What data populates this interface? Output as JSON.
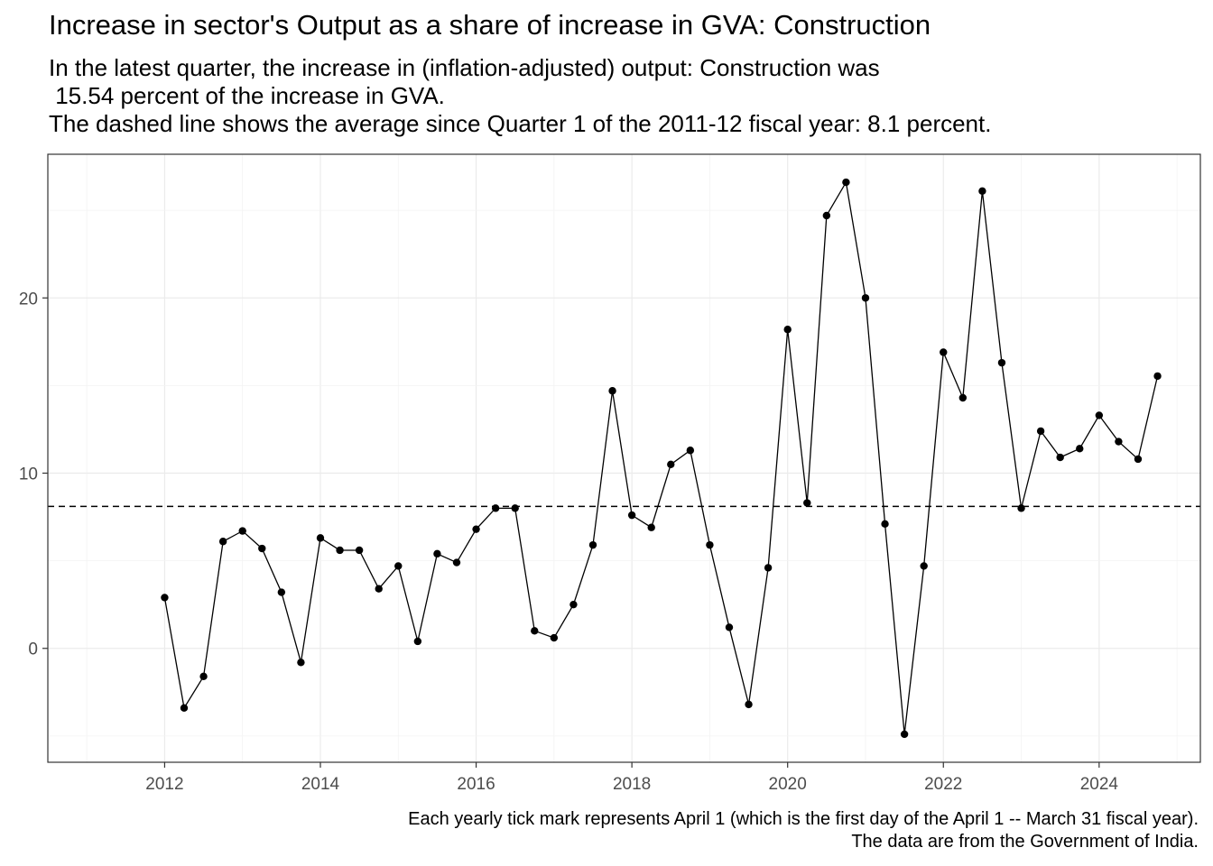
{
  "chart_data": {
    "type": "line",
    "title": "Increase in sector's Output as a share of increase in GVA: Construction",
    "subtitle": [
      "In the latest quarter, the increase in (inflation-adjusted) output: Construction was",
      " 15.54 percent of the increase in GVA.",
      "The dashed line shows the average since Quarter 1 of the 2011-12 fiscal year: 8.1 percent."
    ],
    "caption": [
      "Each yearly tick mark represents April 1 (which is the first day of the April 1 -- March 31 fiscal year).",
      "The data are from the Government of India."
    ],
    "xlabel": "",
    "ylabel": "",
    "xlim": [
      2010.5,
      2025.3
    ],
    "ylim": [
      -6.5,
      28.2
    ],
    "x_ticks": [
      2012,
      2014,
      2016,
      2018,
      2020,
      2022,
      2024
    ],
    "y_ticks": [
      0,
      10,
      20
    ],
    "grid": true,
    "average_line": 8.1,
    "series": [
      {
        "points": [
          [
            2012.0,
            2.9
          ],
          [
            2012.25,
            -3.4
          ],
          [
            2012.5,
            -1.6
          ],
          [
            2012.75,
            6.1
          ],
          [
            2013.0,
            6.7
          ],
          [
            2013.25,
            5.7
          ],
          [
            2013.5,
            3.2
          ],
          [
            2013.75,
            -0.8
          ],
          [
            2014.0,
            6.3
          ],
          [
            2014.25,
            5.6
          ],
          [
            2014.5,
            5.6
          ],
          [
            2014.75,
            3.4
          ],
          [
            2015.0,
            4.7
          ],
          [
            2015.25,
            0.4
          ],
          [
            2015.5,
            5.4
          ],
          [
            2015.75,
            4.9
          ],
          [
            2016.0,
            6.8
          ],
          [
            2016.25,
            8.0
          ],
          [
            2016.5,
            8.0
          ],
          [
            2016.75,
            1.0
          ],
          [
            2017.0,
            0.6
          ],
          [
            2017.25,
            2.5
          ],
          [
            2017.5,
            5.9
          ],
          [
            2017.75,
            14.7
          ],
          [
            2018.0,
            7.6
          ],
          [
            2018.25,
            6.9
          ],
          [
            2018.5,
            10.5
          ],
          [
            2018.75,
            11.3
          ],
          [
            2019.0,
            5.9
          ],
          [
            2019.25,
            1.2
          ],
          [
            2019.5,
            -3.2
          ],
          [
            2019.75,
            4.6
          ],
          [
            2020.0,
            18.2
          ],
          [
            2020.25,
            8.3
          ],
          [
            2020.5,
            24.7
          ],
          [
            2020.75,
            26.6
          ],
          [
            2021.0,
            20.0
          ],
          [
            2021.25,
            7.1
          ],
          [
            2021.5,
            -4.9
          ],
          [
            2021.75,
            4.7
          ],
          [
            2022.0,
            16.9
          ],
          [
            2022.25,
            14.3
          ],
          [
            2022.5,
            26.1
          ],
          [
            2022.75,
            16.3
          ],
          [
            2023.0,
            8.0
          ],
          [
            2023.25,
            12.4
          ],
          [
            2023.5,
            10.9
          ],
          [
            2023.75,
            11.4
          ],
          [
            2024.0,
            13.3
          ],
          [
            2024.25,
            11.8
          ],
          [
            2024.5,
            10.8
          ],
          [
            2024.75,
            15.54
          ]
        ]
      }
    ]
  }
}
